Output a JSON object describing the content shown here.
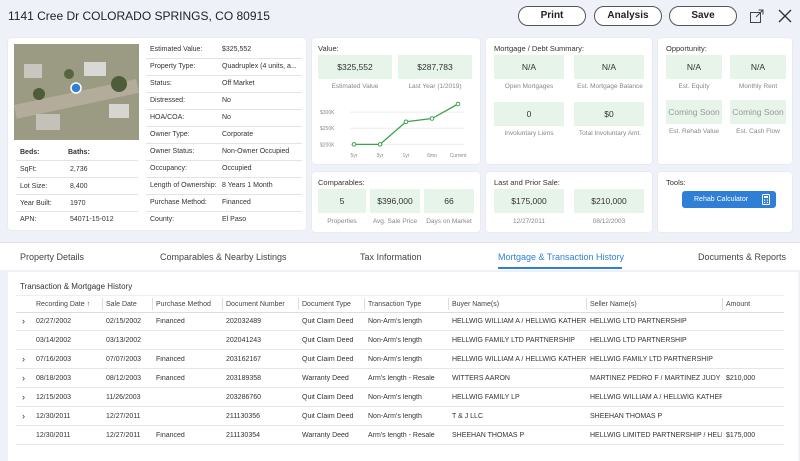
{
  "header": {
    "address": "1141 Cree Dr COLORADO SPRINGS, CO 80915",
    "print": "Print",
    "analysis": "Analysis",
    "save": "Save"
  },
  "property": {
    "beds_label": "Beds:",
    "beds": "",
    "baths_label": "Baths:",
    "baths": "",
    "rows": [
      {
        "label": "SqFt:",
        "value": "2,736"
      },
      {
        "label": "Lot Size:",
        "value": "8,400"
      },
      {
        "label": "Year Built:",
        "value": "1970"
      },
      {
        "label": "APN:",
        "value": "54071-15-012"
      }
    ],
    "details": [
      {
        "label": "Estimated Value:",
        "value": "$325,552"
      },
      {
        "label": "Property Type:",
        "value": "Quadruplex (4 units, a..."
      },
      {
        "label": "Status:",
        "value": "Off Market"
      },
      {
        "label": "Distressed:",
        "value": "No"
      },
      {
        "label": "HOA/COA:",
        "value": "No"
      },
      {
        "label": "Owner Type:",
        "value": "Corporate"
      },
      {
        "label": "Owner Status:",
        "value": "Non-Owner Occupied"
      },
      {
        "label": "Occupancy:",
        "value": "Occupied"
      },
      {
        "label": "Length of Ownership:",
        "value": "8 Years 1 Month"
      },
      {
        "label": "Purchase Method:",
        "value": "Financed"
      },
      {
        "label": "County:",
        "value": "El Paso"
      }
    ]
  },
  "value": {
    "title": "Value:",
    "est_value": "$325,552",
    "est_caption": "Estimated Value",
    "last_year": "$287,783",
    "last_caption": "Last Year (1/2019)"
  },
  "chart_data": {
    "type": "line",
    "categories": [
      "5yr",
      "3yr",
      "1yr",
      "6mo",
      "Current"
    ],
    "values": [
      200,
      200,
      270,
      280,
      325
    ],
    "yticks": [
      "$300K",
      "$250K",
      "$200K"
    ],
    "ylim": [
      195,
      325
    ],
    "color": "#3da34d"
  },
  "mortgage": {
    "title": "Mortgage / Debt Summary:",
    "tiles": [
      {
        "value": "N/A",
        "caption": "Open Mortgages"
      },
      {
        "value": "N/A",
        "caption": "Est. Mortgage Balance"
      },
      {
        "value": "0",
        "caption": "Involuntary Liens"
      },
      {
        "value": "$0",
        "caption": "Total Involuntary Amt."
      }
    ]
  },
  "opportunity": {
    "title": "Opportunity:",
    "tiles": [
      {
        "value": "N/A",
        "caption": "Est. Equity"
      },
      {
        "value": "N/A",
        "caption": "Monthly Rent"
      },
      {
        "value": "Coming Soon",
        "caption": "Est. Rehab Value"
      },
      {
        "value": "Coming Soon",
        "caption": "Est. Cash Flow"
      }
    ]
  },
  "comparables": {
    "title": "Comparables:",
    "tiles": [
      {
        "value": "5",
        "caption": "Properties"
      },
      {
        "value": "$396,000",
        "caption": "Avg. Sale Price"
      },
      {
        "value": "66",
        "caption": "Days on Market"
      }
    ]
  },
  "sales": {
    "title": "Last and Prior Sale:",
    "tiles": [
      {
        "value": "$175,000",
        "caption": "12/27/2011"
      },
      {
        "value": "$210,000",
        "caption": "08/12/2003"
      }
    ]
  },
  "tools": {
    "title": "Tools:",
    "rehab": "Rehab Calculator"
  },
  "tabs": [
    "Property Details",
    "Comparables & Nearby Listings",
    "Tax Information",
    "Mortgage & Transaction History",
    "Documents & Reports"
  ],
  "history": {
    "title": "Transaction & Mortgage History",
    "headers": [
      "Recording Date ↑",
      "Sale Date",
      "Purchase Method",
      "Document Number",
      "Document Type",
      "Transaction Type",
      "Buyer Name(s)",
      "Seller Name(s)",
      "Amount"
    ],
    "rows": [
      {
        "exp": "›",
        "cells": [
          "02/27/2002",
          "02/15/2002",
          "Financed",
          "202032489",
          "Quit Claim Deed",
          "Non-Arm's length",
          "HELLWIG WILLIAM A / HELLWIG KATHER...",
          "HELLWIG LTD PARTNERSHIP",
          ""
        ]
      },
      {
        "exp": "",
        "cells": [
          "03/14/2002",
          "03/13/2002",
          "",
          "202041243",
          "Quit Claim Deed",
          "Non-Arm's length",
          "HELLWIG FAMILY LTD PARTNERSHIP",
          "HELLWIG LTD PARTNERSHIP",
          ""
        ]
      },
      {
        "exp": "›",
        "cells": [
          "07/16/2003",
          "07/07/2003",
          "Financed",
          "203162167",
          "Quit Claim Deed",
          "Non-Arm's length",
          "HELLWIG WILLIAM A / HELLWIG KATHER...",
          "HELLWIG FAMILY LTD PARTNERSHIP",
          ""
        ]
      },
      {
        "exp": "›",
        "cells": [
          "08/18/2003",
          "08/12/2003",
          "Financed",
          "203189358",
          "Warranty Deed",
          "Arm's length - Resale",
          "WITTERS AARON",
          "MARTINEZ PEDRO F / MARTINEZ JUDY A",
          "$210,000"
        ]
      },
      {
        "exp": "›",
        "cells": [
          "12/15/2003",
          "11/26/2003",
          "",
          "203286760",
          "Quit Claim Deed",
          "Non-Arm's length",
          "HELLWIG FAMILY LP",
          "HELLWIG WILLIAM A / HELLWIG KATHER...",
          ""
        ]
      },
      {
        "exp": "›",
        "cells": [
          "12/30/2011",
          "12/27/2011",
          "",
          "211130356",
          "Quit Claim Deed",
          "Non-Arm's length",
          "T & J LLC",
          "SHEEHAN THOMAS P",
          ""
        ]
      },
      {
        "exp": "",
        "cells": [
          "12/30/2011",
          "12/27/2011",
          "Financed",
          "211130354",
          "Warranty Deed",
          "Arm's length - Resale",
          "SHEEHAN THOMAS P",
          "HELLWIG LIMITED PARTNERSHIP / HELL...",
          "$175,000"
        ]
      }
    ]
  },
  "colors": {
    "accent": "#2f7fd6",
    "tile": "#e7f4ea",
    "line": "#3da34d"
  }
}
